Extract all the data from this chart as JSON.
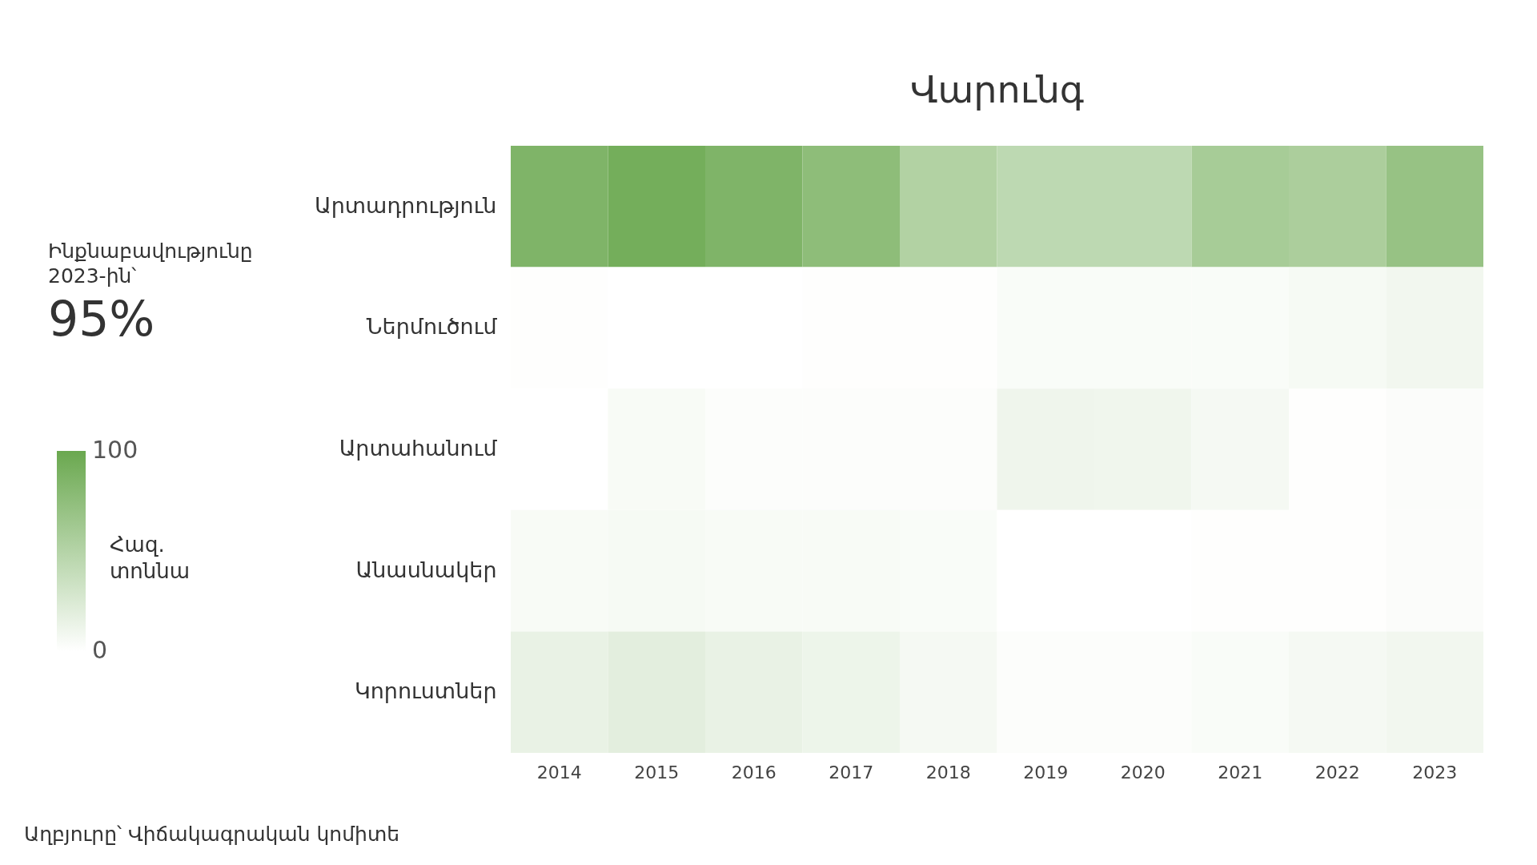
{
  "chart_data": {
    "type": "heatmap",
    "title": "Վարունգ",
    "categories": [
      "2014",
      "2015",
      "2016",
      "2017",
      "2018",
      "2019",
      "2020",
      "2021",
      "2022",
      "2023"
    ],
    "y_categories": [
      "Արտադրություն",
      "Ներմուծում",
      "Արտահանում",
      "Անասնակեր",
      "Կորուստներ"
    ],
    "cells": [
      [
        86,
        93,
        86,
        76,
        52,
        44,
        44,
        59,
        56,
        70
      ],
      [
        1,
        0,
        0,
        1,
        1,
        4,
        4,
        4,
        6,
        9
      ],
      [
        0,
        5,
        2,
        2,
        2,
        11,
        10,
        7,
        1,
        3
      ],
      [
        5,
        6,
        5,
        5,
        4,
        0,
        0,
        1,
        1,
        3
      ],
      [
        15,
        19,
        15,
        12,
        7,
        2,
        2,
        4,
        7,
        9
      ]
    ],
    "clim": [
      0,
      100
    ],
    "cticks": [
      0,
      100
    ],
    "clabel": "Հազ. տոննա",
    "annotations": [
      "Ինքնաբավությունը 2023-ին՝",
      "95%",
      "Աղբյուրը՝ Վիճակագրական կոմիտե"
    ]
  }
}
